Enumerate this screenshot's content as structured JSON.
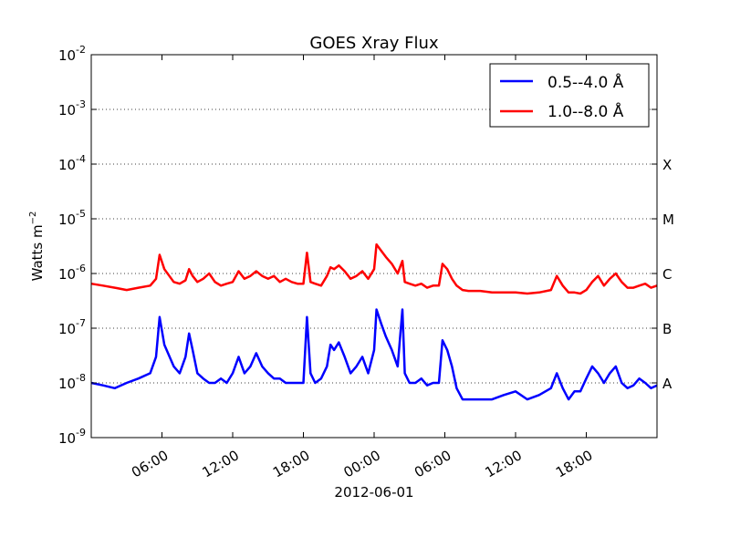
{
  "chart_data": {
    "type": "line",
    "title": "GOES Xray Flux",
    "xlabel": "2012-06-01",
    "ylabel": "Watts m",
    "ylabel_superscript": "−2",
    "y_scale": "log",
    "ylim": [
      1e-09,
      0.01
    ],
    "xlim_hours": [
      0,
      48
    ],
    "y_ticks": [
      {
        "value": 1e-09,
        "mantissa": "10",
        "exp": "-9"
      },
      {
        "value": 1e-08,
        "mantissa": "10",
        "exp": "-8"
      },
      {
        "value": 1e-07,
        "mantissa": "10",
        "exp": "-7"
      },
      {
        "value": 1e-06,
        "mantissa": "10",
        "exp": "-6"
      },
      {
        "value": 1e-05,
        "mantissa": "10",
        "exp": "-5"
      },
      {
        "value": 0.0001,
        "mantissa": "10",
        "exp": "-4"
      },
      {
        "value": 0.001,
        "mantissa": "10",
        "exp": "-3"
      },
      {
        "value": 0.01,
        "mantissa": "10",
        "exp": "-2"
      }
    ],
    "x_ticks": [
      {
        "hour": 6,
        "label": "06:00"
      },
      {
        "hour": 12,
        "label": "12:00"
      },
      {
        "hour": 18,
        "label": "18:00"
      },
      {
        "hour": 24,
        "label": "00:00"
      },
      {
        "hour": 30,
        "label": "06:00"
      },
      {
        "hour": 36,
        "label": "12:00"
      },
      {
        "hour": 42,
        "label": "18:00"
      }
    ],
    "flare_classes": [
      {
        "label": "X",
        "value": 0.0001
      },
      {
        "label": "M",
        "value": 1e-05
      },
      {
        "label": "C",
        "value": 1e-06
      },
      {
        "label": "B",
        "value": 1e-07
      },
      {
        "label": "A",
        "value": 1e-08
      }
    ],
    "grid": "horizontal dotted",
    "legend_position": "top-right",
    "series": [
      {
        "name": "1.0--8.0 Å",
        "color": "#ff0000",
        "points": [
          [
            0,
            6.5e-07
          ],
          [
            1,
            6e-07
          ],
          [
            2,
            5.5e-07
          ],
          [
            3,
            5e-07
          ],
          [
            4,
            5.5e-07
          ],
          [
            5,
            6e-07
          ],
          [
            5.5,
            8e-07
          ],
          [
            5.8,
            2.2e-06
          ],
          [
            6.2,
            1.2e-06
          ],
          [
            7,
            7e-07
          ],
          [
            7.5,
            6.5e-07
          ],
          [
            8,
            7.5e-07
          ],
          [
            8.3,
            1.2e-06
          ],
          [
            8.6,
            9e-07
          ],
          [
            9,
            7e-07
          ],
          [
            9.5,
            8e-07
          ],
          [
            10,
            1e-06
          ],
          [
            10.5,
            7e-07
          ],
          [
            11,
            6e-07
          ],
          [
            11.5,
            6.5e-07
          ],
          [
            12,
            7e-07
          ],
          [
            12.5,
            1.1e-06
          ],
          [
            13,
            8e-07
          ],
          [
            13.5,
            9e-07
          ],
          [
            14,
            1.1e-06
          ],
          [
            14.5,
            9e-07
          ],
          [
            15,
            8e-07
          ],
          [
            15.5,
            9e-07
          ],
          [
            16,
            7e-07
          ],
          [
            16.5,
            8e-07
          ],
          [
            17,
            7e-07
          ],
          [
            17.5,
            6.5e-07
          ],
          [
            18,
            6.5e-07
          ],
          [
            18.3,
            2.4e-06
          ],
          [
            18.6,
            7e-07
          ],
          [
            19,
            6.5e-07
          ],
          [
            19.5,
            6e-07
          ],
          [
            20,
            9e-07
          ],
          [
            20.3,
            1.3e-06
          ],
          [
            20.6,
            1.2e-06
          ],
          [
            21,
            1.4e-06
          ],
          [
            21.5,
            1.1e-06
          ],
          [
            22,
            8e-07
          ],
          [
            22.5,
            9e-07
          ],
          [
            23,
            1.1e-06
          ],
          [
            23.5,
            8e-07
          ],
          [
            24,
            1.2e-06
          ],
          [
            24.2,
            3.4e-06
          ],
          [
            24.6,
            2.6e-06
          ],
          [
            25,
            2e-06
          ],
          [
            25.5,
            1.5e-06
          ],
          [
            26,
            1e-06
          ],
          [
            26.4,
            1.7e-06
          ],
          [
            26.6,
            7e-07
          ],
          [
            27,
            6.5e-07
          ],
          [
            27.5,
            6e-07
          ],
          [
            28,
            6.5e-07
          ],
          [
            28.5,
            5.5e-07
          ],
          [
            29,
            6e-07
          ],
          [
            29.5,
            6e-07
          ],
          [
            29.8,
            1.5e-06
          ],
          [
            30.2,
            1.2e-06
          ],
          [
            30.6,
            8e-07
          ],
          [
            31,
            6e-07
          ],
          [
            31.5,
            5e-07
          ],
          [
            32,
            4.8e-07
          ],
          [
            33,
            4.8e-07
          ],
          [
            34,
            4.5e-07
          ],
          [
            35,
            4.5e-07
          ],
          [
            36,
            4.5e-07
          ],
          [
            37,
            4.3e-07
          ],
          [
            38,
            4.5e-07
          ],
          [
            39,
            5e-07
          ],
          [
            39.5,
            9e-07
          ],
          [
            40,
            6e-07
          ],
          [
            40.5,
            4.5e-07
          ],
          [
            41,
            4.5e-07
          ],
          [
            41.5,
            4.3e-07
          ],
          [
            42,
            5e-07
          ],
          [
            42.5,
            7e-07
          ],
          [
            43,
            9e-07
          ],
          [
            43.5,
            6e-07
          ],
          [
            44,
            8e-07
          ],
          [
            44.5,
            1e-06
          ],
          [
            45,
            7e-07
          ],
          [
            45.5,
            5.5e-07
          ],
          [
            46,
            5.5e-07
          ],
          [
            46.5,
            6e-07
          ],
          [
            47,
            6.5e-07
          ],
          [
            47.5,
            5.5e-07
          ],
          [
            48,
            6e-07
          ]
        ]
      },
      {
        "name": "0.5--4.0 Å",
        "color": "#0000ff",
        "points": [
          [
            0,
            1e-08
          ],
          [
            1,
            9e-09
          ],
          [
            2,
            8e-09
          ],
          [
            3,
            1e-08
          ],
          [
            4,
            1.2e-08
          ],
          [
            5,
            1.5e-08
          ],
          [
            5.5,
            3e-08
          ],
          [
            5.8,
            1.6e-07
          ],
          [
            6.2,
            5e-08
          ],
          [
            7,
            2e-08
          ],
          [
            7.5,
            1.5e-08
          ],
          [
            8,
            3e-08
          ],
          [
            8.3,
            8e-08
          ],
          [
            8.6,
            4e-08
          ],
          [
            9,
            1.5e-08
          ],
          [
            9.5,
            1.2e-08
          ],
          [
            10,
            1e-08
          ],
          [
            10.5,
            1e-08
          ],
          [
            11,
            1.2e-08
          ],
          [
            11.5,
            1e-08
          ],
          [
            12,
            1.5e-08
          ],
          [
            12.5,
            3e-08
          ],
          [
            13,
            1.5e-08
          ],
          [
            13.5,
            2e-08
          ],
          [
            14,
            3.5e-08
          ],
          [
            14.5,
            2e-08
          ],
          [
            15,
            1.5e-08
          ],
          [
            15.5,
            1.2e-08
          ],
          [
            16,
            1.2e-08
          ],
          [
            16.5,
            1e-08
          ],
          [
            17,
            1e-08
          ],
          [
            17.5,
            1e-08
          ],
          [
            18,
            1e-08
          ],
          [
            18.3,
            1.6e-07
          ],
          [
            18.6,
            1.5e-08
          ],
          [
            19,
            1e-08
          ],
          [
            19.5,
            1.2e-08
          ],
          [
            20,
            2e-08
          ],
          [
            20.3,
            5e-08
          ],
          [
            20.6,
            4e-08
          ],
          [
            21,
            5.5e-08
          ],
          [
            21.5,
            3e-08
          ],
          [
            22,
            1.5e-08
          ],
          [
            22.5,
            2e-08
          ],
          [
            23,
            3e-08
          ],
          [
            23.5,
            1.5e-08
          ],
          [
            24,
            4e-08
          ],
          [
            24.2,
            2.2e-07
          ],
          [
            24.6,
            1.2e-07
          ],
          [
            25,
            7e-08
          ],
          [
            25.5,
            4e-08
          ],
          [
            26,
            2e-08
          ],
          [
            26.4,
            2.2e-07
          ],
          [
            26.6,
            1.5e-08
          ],
          [
            27,
            1e-08
          ],
          [
            27.5,
            1e-08
          ],
          [
            28,
            1.2e-08
          ],
          [
            28.5,
            9e-09
          ],
          [
            29,
            1e-08
          ],
          [
            29.5,
            1e-08
          ],
          [
            29.8,
            6e-08
          ],
          [
            30.2,
            4e-08
          ],
          [
            30.6,
            2e-08
          ],
          [
            31,
            8e-09
          ],
          [
            31.5,
            5e-09
          ],
          [
            32,
            5e-09
          ],
          [
            33,
            5e-09
          ],
          [
            34,
            5e-09
          ],
          [
            35,
            6e-09
          ],
          [
            36,
            7e-09
          ],
          [
            37,
            5e-09
          ],
          [
            38,
            6e-09
          ],
          [
            39,
            8e-09
          ],
          [
            39.5,
            1.5e-08
          ],
          [
            40,
            8e-09
          ],
          [
            40.5,
            5e-09
          ],
          [
            41,
            7e-09
          ],
          [
            41.5,
            7e-09
          ],
          [
            42,
            1.2e-08
          ],
          [
            42.5,
            2e-08
          ],
          [
            43,
            1.5e-08
          ],
          [
            43.5,
            1e-08
          ],
          [
            44,
            1.5e-08
          ],
          [
            44.5,
            2e-08
          ],
          [
            45,
            1e-08
          ],
          [
            45.5,
            8e-09
          ],
          [
            46,
            9e-09
          ],
          [
            46.5,
            1.2e-08
          ],
          [
            47,
            1e-08
          ],
          [
            47.5,
            8e-09
          ],
          [
            48,
            9e-09
          ]
        ]
      }
    ],
    "legend": [
      {
        "label": "0.5--4.0 Å",
        "color": "#0000ff"
      },
      {
        "label": "1.0--8.0 Å",
        "color": "#ff0000"
      }
    ]
  }
}
